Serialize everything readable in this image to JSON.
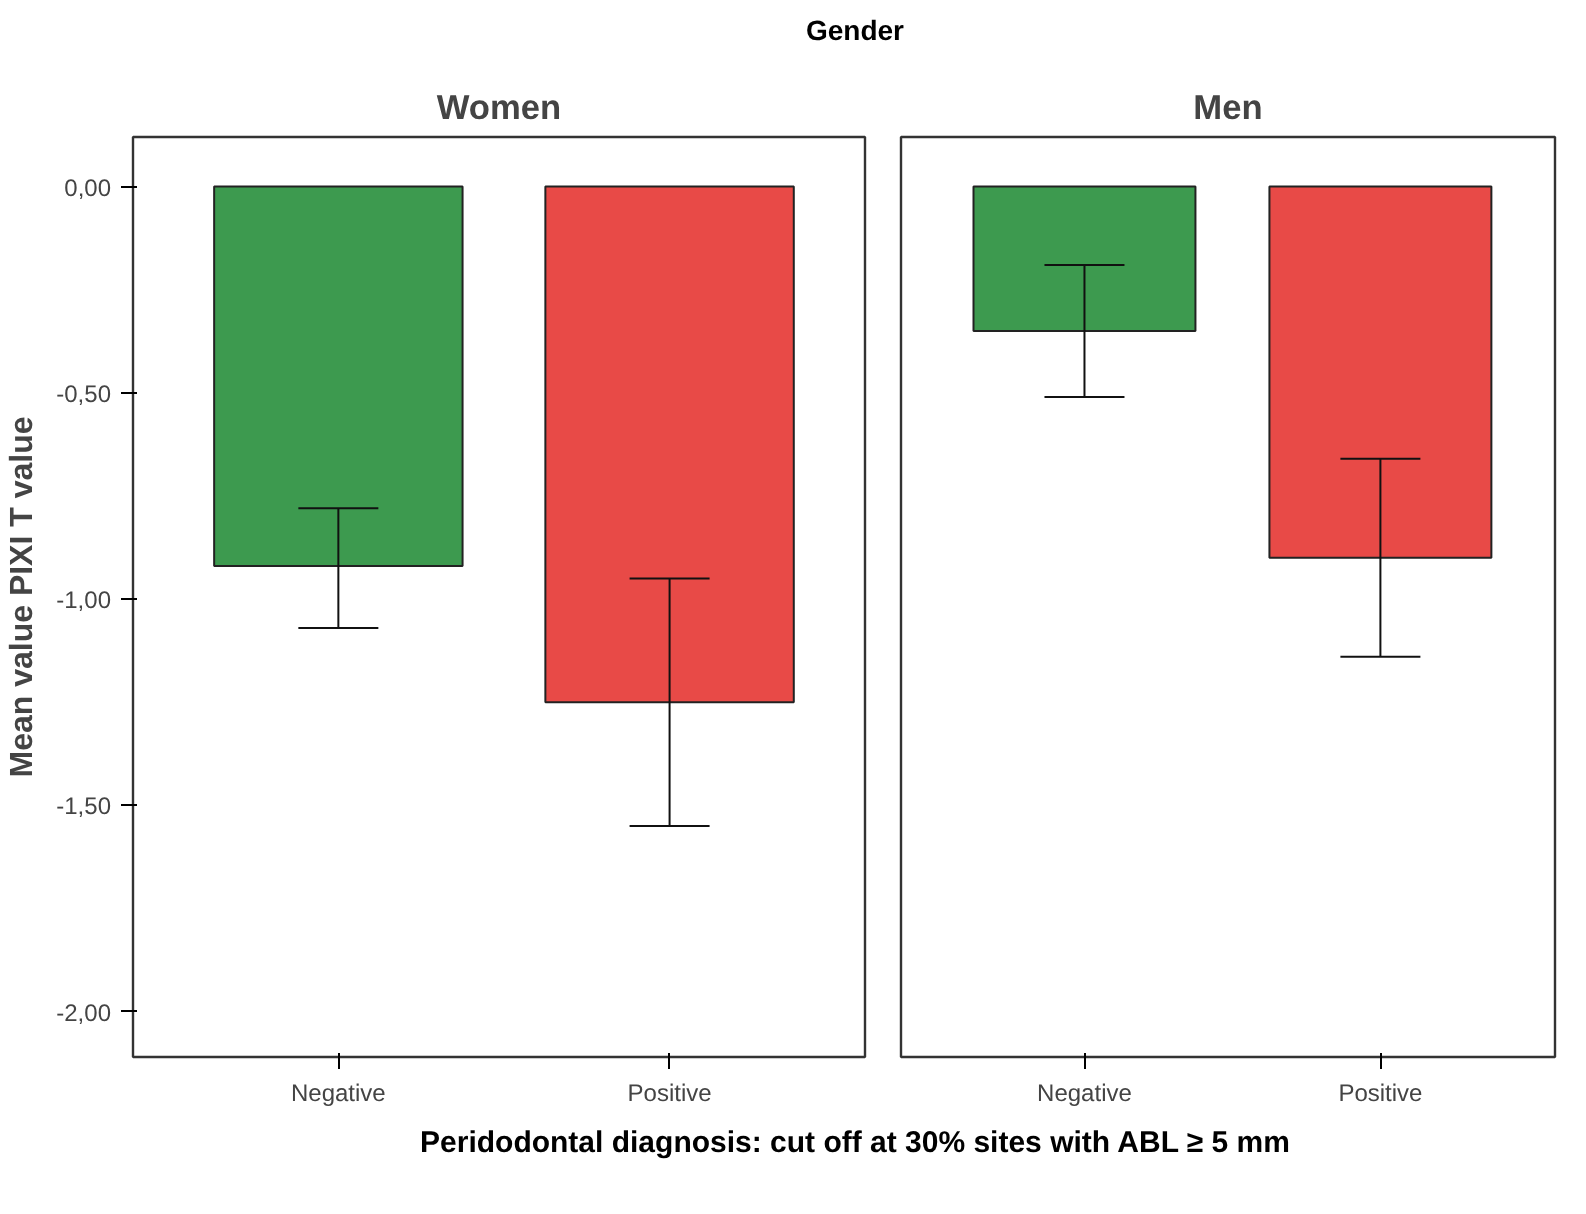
{
  "chart_data": [
    {
      "type": "bar",
      "title": "Women",
      "annotations": [
        "Gender"
      ],
      "xlabel": "Peridodontal diagnosis: cut off at 30% sites with ABL ≥ 5 mm",
      "ylabel": "Mean value PIXI T value",
      "categories": [
        "Negative",
        "Positive"
      ],
      "values": [
        -0.92,
        -1.25
      ],
      "colors": [
        "#3d9a4f",
        "#e84a47"
      ],
      "errors": [
        [
          -1.07,
          -0.78
        ],
        [
          -1.55,
          -0.95
        ]
      ],
      "ylim": [
        -2.11,
        0.12
      ],
      "yticks": [
        {
          "value": 0,
          "label": "0,00"
        },
        {
          "value": -0.5,
          "label": "-0,50"
        },
        {
          "value": -1,
          "label": "-1,00"
        },
        {
          "value": -1.5,
          "label": "-1,50"
        },
        {
          "value": -2,
          "label": "-2,00"
        }
      ],
      "grid": false
    },
    {
      "type": "bar",
      "title": "Men",
      "categories": [
        "Negative",
        "Positive"
      ],
      "values": [
        -0.35,
        -0.9
      ],
      "colors": [
        "#3d9a4f",
        "#e84a47"
      ],
      "errors": [
        [
          -0.51,
          -0.19
        ],
        [
          -1.14,
          -0.66
        ]
      ],
      "ylim": [
        -2.11,
        0.12
      ],
      "tick_labels": "x",
      "grid": false
    }
  ]
}
